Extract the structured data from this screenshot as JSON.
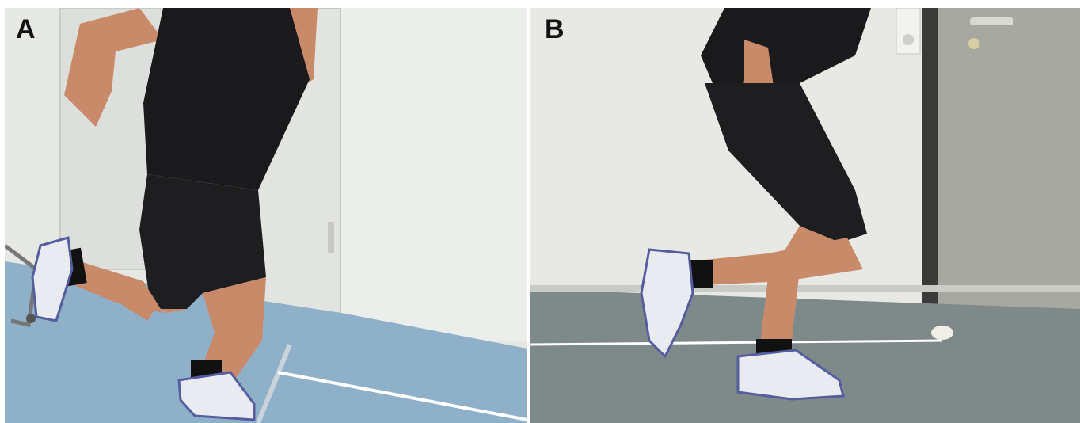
{
  "panels": [
    {
      "label": "A"
    },
    {
      "label": "B"
    }
  ],
  "colors": {
    "wall": "#e9ebe6",
    "floor_a": "#8fb0c9",
    "floor_b": "#7e8a8a",
    "clothing": "#1a1a1c",
    "skin": "#c98a6a",
    "door_b": "#a7a89f",
    "tape": "#ffffff"
  }
}
